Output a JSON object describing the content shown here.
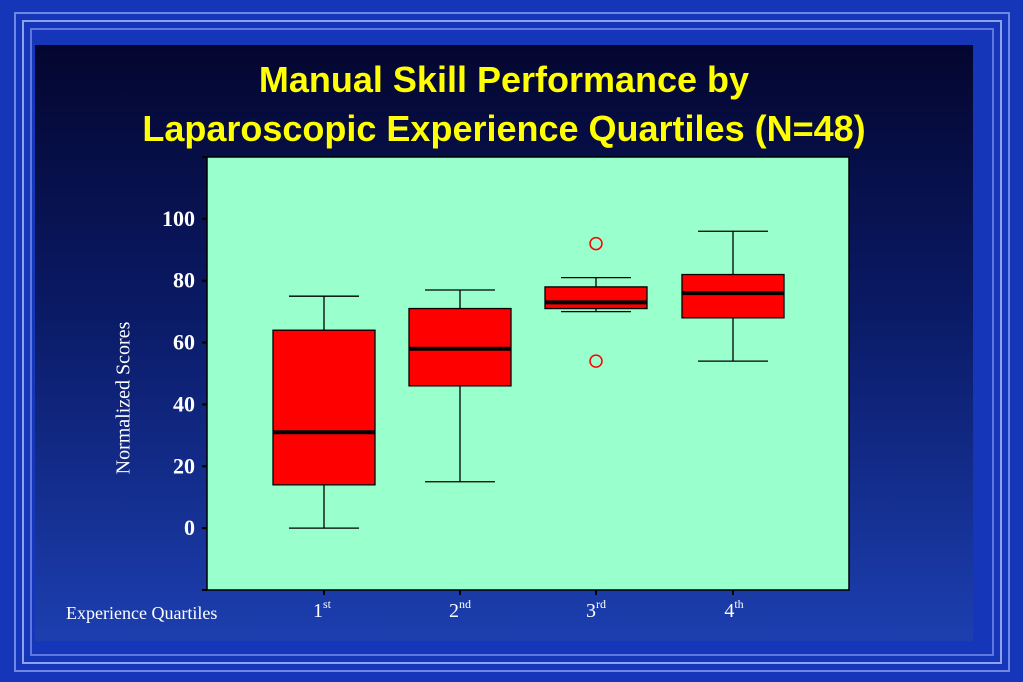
{
  "chart_data": {
    "type": "box",
    "title_lines": [
      "Manual Skill Performance by",
      "Laparoscopic Experience Quartiles (N=48)"
    ],
    "ylabel": "Normalized Scores",
    "xlabel": "Experience Quartiles",
    "categories": [
      {
        "base": "1",
        "suffix": "st"
      },
      {
        "base": "2",
        "suffix": "nd"
      },
      {
        "base": "3",
        "suffix": "rd"
      },
      {
        "base": "4",
        "suffix": "th"
      }
    ],
    "y_ticks": [
      "0",
      "20",
      "40",
      "60",
      "80",
      "100"
    ],
    "ylim": [
      -20,
      120
    ],
    "boxes": [
      {
        "whisker_low": 0,
        "q1": 14,
        "median": 31,
        "q3": 64,
        "whisker_high": 75,
        "outliers": []
      },
      {
        "whisker_low": 15,
        "q1": 46,
        "median": 58,
        "q3": 71,
        "whisker_high": 77,
        "outliers": []
      },
      {
        "whisker_low": 70,
        "q1": 71,
        "median": 73,
        "q3": 78,
        "whisker_high": 81,
        "outliers": [
          92,
          54
        ]
      },
      {
        "whisker_low": 54,
        "q1": 68,
        "median": 76,
        "q3": 82,
        "whisker_high": 96,
        "outliers": []
      }
    ],
    "colors": {
      "plot_background": "#99ffcc",
      "box_fill": "#ff0000",
      "outlier": "#ff0000",
      "median": "#000000"
    }
  }
}
